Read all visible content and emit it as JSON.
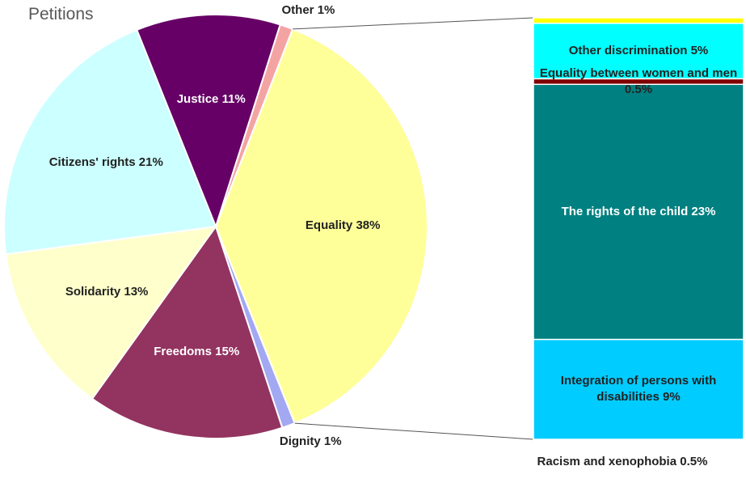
{
  "chart_data": {
    "type": "pie-of-bar",
    "title": "Petitions",
    "categories": [
      "Other",
      "Equality",
      "Dignity",
      "Freedoms",
      "Solidarity",
      "Citizens' rights",
      "Justice"
    ],
    "values": [
      1,
      38,
      1,
      15,
      13,
      21,
      11
    ],
    "value_labels": [
      "1%",
      "38%",
      "1%",
      "15%",
      "13%",
      "21%",
      "11%"
    ],
    "colors": [
      "#f4a3a3",
      "#ffff99",
      "#a3a8f2",
      "#933360",
      "#ffffcc",
      "#ccffff",
      "#660066"
    ],
    "bar": {
      "categories": [
        "Racism and xenophobia",
        "Other discrimination",
        "Equality between women and men",
        "The rights of the child",
        "Integration of persons with disabilities"
      ],
      "values": [
        0.5,
        5,
        0.5,
        23,
        9
      ],
      "value_labels": [
        "0.5%",
        "5%",
        "0.5%",
        "23%",
        "9%"
      ],
      "colors": [
        "#ffff00",
        "#00ffff",
        "#800000",
        "#008080",
        "#00ccff"
      ]
    }
  }
}
